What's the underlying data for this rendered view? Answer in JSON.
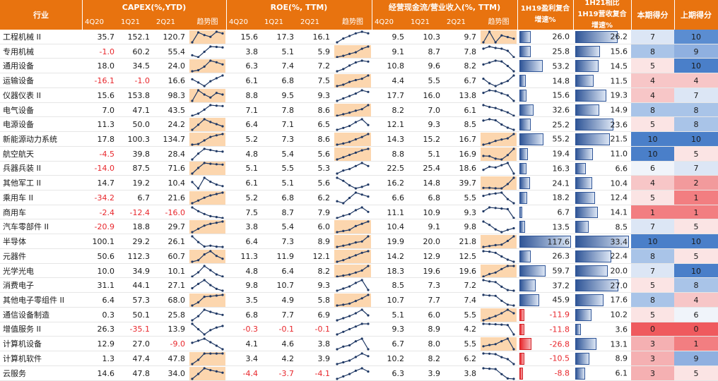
{
  "headers": {
    "industry": "行业",
    "capex": "CAPEX(%,YTD)",
    "roe": "ROE(%, TTM)",
    "cfo": "经营现金流/营业收入(%, TTM)",
    "profit_cagr": "1H19盈利复合增速%",
    "rev_cagr": "1H21相比1H19营收复合增速%",
    "score_now": "本期得分",
    "score_prev": "上期得分",
    "periods": [
      "4Q20",
      "1Q21",
      "2Q21"
    ],
    "trend": "趋势图"
  },
  "colors": {
    "header_bg": "#e8730f",
    "trend_bg": "#fcd6ae",
    "line": "#1f3864",
    "negative_text": "#e8272c",
    "bar_pos": "#2f5597",
    "bar_neg": "#e8272c"
  },
  "rows": [
    {
      "name": "工程机械 II",
      "capex": [
        "35.7",
        "152.1",
        "120.7"
      ],
      "capex_trend": [
        35.7,
        152.1,
        120.7,
        100,
        160,
        140
      ],
      "capex_hl": true,
      "roe": [
        "15.6",
        "17.3",
        "16.1"
      ],
      "roe_trend": [
        9,
        12,
        14,
        16,
        17.3,
        16.1
      ],
      "roe_hl": false,
      "cfo": [
        "9.5",
        "10.3",
        "9.7"
      ],
      "cfo_trend": [
        9,
        11,
        9,
        10.3,
        10,
        9.7
      ],
      "cfo_hl": true,
      "profit": "26.0",
      "rev": "26.2",
      "score_now": "7",
      "score_prev": "10",
      "score_now_color": "#dce6f5",
      "score_prev_color": "#5b8dd1"
    },
    {
      "name": "专用机械",
      "capex": [
        "-1.0",
        "60.2",
        "55.4"
      ],
      "capex_trend": [
        10,
        -1,
        30,
        60.2,
        58,
        55.4
      ],
      "capex_hl": false,
      "roe": [
        "3.8",
        "5.1",
        "5.9"
      ],
      "roe_trend": [
        2,
        2.5,
        3.2,
        3.8,
        5.1,
        5.9
      ],
      "roe_hl": true,
      "cfo": [
        "9.1",
        "8.7",
        "7.8"
      ],
      "cfo_trend": [
        9,
        9.3,
        9.1,
        9,
        8.7,
        7.8
      ],
      "cfo_hl": false,
      "profit": "25.8",
      "rev": "15.6",
      "score_now": "8",
      "score_prev": "9",
      "score_now_color": "#a9c4e8",
      "score_prev_color": "#8fb0e0"
    },
    {
      "name": "通用设备",
      "capex": [
        "18.0",
        "34.5",
        "24.0"
      ],
      "capex_trend": [
        5,
        8,
        18,
        34.5,
        30,
        24
      ],
      "capex_hl": true,
      "roe": [
        "6.3",
        "7.4",
        "7.2"
      ],
      "roe_trend": [
        5,
        5.5,
        6.3,
        7,
        7.4,
        7.2
      ],
      "roe_hl": false,
      "cfo": [
        "10.8",
        "9.6",
        "8.2"
      ],
      "cfo_trend": [
        10,
        10.5,
        11,
        10.8,
        9.6,
        8.2
      ],
      "cfo_hl": false,
      "profit": "53.2",
      "rev": "14.5",
      "score_now": "5",
      "score_prev": "10",
      "score_now_color": "#fbe4e4",
      "score_prev_color": "#4a7fc9"
    },
    {
      "name": "运输设备",
      "capex": [
        "-16.1",
        "-1.0",
        "16.6"
      ],
      "capex_trend": [
        5,
        -5,
        -16.1,
        -1,
        8,
        16.6
      ],
      "capex_hl": false,
      "roe": [
        "6.1",
        "6.8",
        "7.5"
      ],
      "roe_trend": [
        5.2,
        5.5,
        6.1,
        6.5,
        6.8,
        7.5
      ],
      "roe_hl": true,
      "cfo": [
        "4.4",
        "5.5",
        "6.7"
      ],
      "cfo_trend": [
        6,
        5,
        4.4,
        5,
        5.5,
        6.7
      ],
      "cfo_hl": false,
      "profit": "14.8",
      "rev": "11.5",
      "score_now": "4",
      "score_prev": "4",
      "score_now_color": "#f7c6c7",
      "score_prev_color": "#f7c6c7"
    },
    {
      "name": "仪器仪表 II",
      "capex": [
        "15.6",
        "153.8",
        "98.3"
      ],
      "capex_trend": [
        15.6,
        153.8,
        98.3,
        60,
        120,
        98.3
      ],
      "capex_hl": true,
      "roe": [
        "8.8",
        "9.5",
        "9.3"
      ],
      "roe_trend": [
        8.2,
        8.5,
        8.8,
        9.1,
        9.5,
        9.3
      ],
      "roe_hl": false,
      "cfo": [
        "17.7",
        "16.0",
        "13.8"
      ],
      "cfo_trend": [
        17,
        18,
        17.7,
        16.8,
        16,
        13.8
      ],
      "cfo_hl": false,
      "profit": "15.6",
      "rev": "19.3",
      "score_now": "4",
      "score_prev": "7",
      "score_now_color": "#f7c6c7",
      "score_prev_color": "#dce6f5"
    },
    {
      "name": "电气设备",
      "capex": [
        "7.0",
        "47.1",
        "43.5"
      ],
      "capex_trend": [
        7,
        15,
        30,
        47.1,
        45,
        43.5
      ],
      "capex_hl": false,
      "roe": [
        "7.1",
        "7.8",
        "8.6"
      ],
      "roe_trend": [
        6.5,
        6.8,
        7.1,
        7.5,
        7.8,
        8.6
      ],
      "roe_hl": true,
      "cfo": [
        "8.2",
        "7.0",
        "6.1"
      ],
      "cfo_trend": [
        9,
        8.5,
        8.2,
        7.6,
        7,
        6.1
      ],
      "cfo_hl": false,
      "profit": "32.6",
      "rev": "14.9",
      "score_now": "8",
      "score_prev": "8",
      "score_now_color": "#a9c4e8",
      "score_prev_color": "#a9c4e8"
    },
    {
      "name": "电源设备",
      "capex": [
        "11.3",
        "50.0",
        "24.2"
      ],
      "capex_trend": [
        11.3,
        30,
        50,
        40,
        32,
        24.2
      ],
      "capex_hl": true,
      "roe": [
        "6.4",
        "7.1",
        "6.5"
      ],
      "roe_trend": [
        6,
        6.2,
        6.4,
        6.8,
        7.1,
        6.5
      ],
      "roe_hl": false,
      "cfo": [
        "12.1",
        "9.3",
        "8.5"
      ],
      "cfo_trend": [
        12,
        12.5,
        12.1,
        10.5,
        9.3,
        8.5
      ],
      "cfo_hl": false,
      "profit": "25.2",
      "rev": "23.6",
      "score_now": "5",
      "score_prev": "8",
      "score_now_color": "#fbe4e4",
      "score_prev_color": "#a9c4e8"
    },
    {
      "name": "新能源动力系统",
      "capex": [
        "17.8",
        "100.3",
        "134.7"
      ],
      "capex_trend": [
        10,
        17.8,
        60,
        100.3,
        120,
        134.7
      ],
      "capex_hl": true,
      "roe": [
        "5.2",
        "7.3",
        "8.6"
      ],
      "roe_trend": [
        4,
        4.5,
        5.2,
        6.3,
        7.3,
        8.6
      ],
      "roe_hl": true,
      "cfo": [
        "14.3",
        "15.2",
        "16.7"
      ],
      "cfo_trend": [
        13,
        13.5,
        14.3,
        14.8,
        15.2,
        16.7
      ],
      "cfo_hl": true,
      "profit": "55.2",
      "rev": "21.5",
      "score_now": "10",
      "score_prev": "10",
      "score_now_color": "#4a7fc9",
      "score_prev_color": "#4a7fc9"
    },
    {
      "name": "航空航天",
      "capex": [
        "-4.5",
        "39.8",
        "28.4"
      ],
      "capex_trend": [
        -4.5,
        20,
        39.8,
        35,
        30,
        28.4
      ],
      "capex_hl": false,
      "roe": [
        "4.8",
        "5.4",
        "5.6"
      ],
      "roe_trend": [
        4.2,
        4.5,
        4.8,
        5.1,
        5.4,
        5.6
      ],
      "roe_hl": true,
      "cfo": [
        "8.8",
        "5.1",
        "16.9"
      ],
      "cfo_trend": [
        9,
        8.8,
        6,
        5.1,
        10,
        16.9
      ],
      "cfo_hl": true,
      "profit": "19.4",
      "rev": "11.0",
      "score_now": "10",
      "score_prev": "5",
      "score_now_color": "#4a7fc9",
      "score_prev_color": "#fbe4e4"
    },
    {
      "name": "兵器兵装 II",
      "capex": [
        "-14.0",
        "87.5",
        "71.6"
      ],
      "capex_trend": [
        -14,
        40,
        87.5,
        80,
        75,
        71.6
      ],
      "capex_hl": true,
      "roe": [
        "5.1",
        "5.5",
        "5.3"
      ],
      "roe_trend": [
        4.8,
        5,
        5.1,
        5.3,
        5.5,
        5.3
      ],
      "roe_hl": false,
      "cfo": [
        "22.5",
        "25.4",
        "18.6"
      ],
      "cfo_trend": [
        21,
        23,
        22.5,
        24,
        25.4,
        18.6
      ],
      "cfo_hl": false,
      "profit": "16.3",
      "rev": "6.6",
      "score_now": "6",
      "score_prev": "7",
      "score_now_color": "#f0f4fa",
      "score_prev_color": "#dce6f5"
    },
    {
      "name": "其他军工 II",
      "capex": [
        "14.7",
        "19.2",
        "10.4"
      ],
      "capex_trend": [
        14.7,
        8,
        19.2,
        15,
        12,
        10.4
      ],
      "capex_hl": false,
      "roe": [
        "6.1",
        "5.1",
        "5.6"
      ],
      "roe_trend": [
        6.5,
        6.1,
        5.5,
        5.1,
        5.3,
        5.6
      ],
      "roe_hl": false,
      "cfo": [
        "16.2",
        "14.8",
        "39.7"
      ],
      "cfo_trend": [
        16,
        16.2,
        15,
        14.8,
        25,
        39.7
      ],
      "cfo_hl": true,
      "profit": "24.1",
      "rev": "10.4",
      "score_now": "4",
      "score_prev": "2",
      "score_now_color": "#f7c6c7",
      "score_prev_color": "#f29a9c"
    },
    {
      "name": "乘用车 II",
      "capex": [
        "-34.2",
        "6.7",
        "21.6"
      ],
      "capex_trend": [
        -34.2,
        -20,
        -5,
        6.7,
        14,
        21.6
      ],
      "capex_hl": true,
      "roe": [
        "5.2",
        "6.8",
        "6.2"
      ],
      "roe_trend": [
        5.5,
        5.2,
        6,
        6.8,
        6.5,
        6.2
      ],
      "roe_hl": false,
      "cfo": [
        "6.6",
        "6.8",
        "5.5"
      ],
      "cfo_trend": [
        6.4,
        6.6,
        6.7,
        6.8,
        6,
        5.5
      ],
      "cfo_hl": false,
      "profit": "18.2",
      "rev": "12.4",
      "score_now": "5",
      "score_prev": "1",
      "score_now_color": "#fbe4e4",
      "score_prev_color": "#f27e81"
    },
    {
      "name": "商用车",
      "capex": [
        "-2.4",
        "-12.4",
        "-16.0"
      ],
      "capex_trend": [
        5,
        -2.4,
        -8,
        -12.4,
        -14,
        -16
      ],
      "capex_hl": false,
      "roe": [
        "7.5",
        "8.7",
        "7.9"
      ],
      "roe_trend": [
        6.8,
        7.2,
        7.5,
        8.2,
        8.7,
        7.9
      ],
      "roe_hl": false,
      "cfo": [
        "11.1",
        "10.9",
        "9.3"
      ],
      "cfo_trend": [
        10.5,
        11.2,
        11.1,
        11,
        10.9,
        9.3
      ],
      "cfo_hl": false,
      "profit": "6.7",
      "rev": "14.1",
      "score_now": "1",
      "score_prev": "1",
      "score_now_color": "#f27e81",
      "score_prev_color": "#f27e81"
    },
    {
      "name": "汽车零部件 II",
      "capex": [
        "-20.9",
        "18.8",
        "29.7"
      ],
      "capex_trend": [
        -20.9,
        -5,
        10,
        18.8,
        24,
        29.7
      ],
      "capex_hl": true,
      "roe": [
        "3.8",
        "5.4",
        "6.0"
      ],
      "roe_trend": [
        3.2,
        3.5,
        3.8,
        4.8,
        5.4,
        6
      ],
      "roe_hl": true,
      "cfo": [
        "10.4",
        "9.1",
        "9.8"
      ],
      "cfo_trend": [
        11,
        10.4,
        9.6,
        9.1,
        9.5,
        9.8
      ],
      "cfo_hl": false,
      "profit": "13.5",
      "rev": "8.5",
      "score_now": "7",
      "score_prev": "5",
      "score_now_color": "#dce6f5",
      "score_prev_color": "#fbe4e4"
    },
    {
      "name": "半导体",
      "capex": [
        "100.1",
        "29.2",
        "26.1"
      ],
      "capex_trend": [
        100.1,
        60,
        29.2,
        35,
        28,
        26.1
      ],
      "capex_hl": false,
      "roe": [
        "6.4",
        "7.3",
        "8.9"
      ],
      "roe_trend": [
        5.6,
        6,
        6.4,
        7,
        7.3,
        8.9
      ],
      "roe_hl": true,
      "cfo": [
        "19.9",
        "20.0",
        "21.8"
      ],
      "cfo_trend": [
        19.5,
        19.7,
        19.9,
        20,
        20.8,
        21.8
      ],
      "cfo_hl": true,
      "profit": "117.6",
      "rev": "33.4",
      "score_now": "10",
      "score_prev": "10",
      "score_now_color": "#4a7fc9",
      "score_prev_color": "#4a7fc9"
    },
    {
      "name": "元器件",
      "capex": [
        "50.6",
        "112.3",
        "60.7"
      ],
      "capex_trend": [
        40,
        50.6,
        90,
        112.3,
        80,
        60.7
      ],
      "capex_hl": true,
      "roe": [
        "11.3",
        "11.9",
        "12.1"
      ],
      "roe_trend": [
        10.8,
        11,
        11.3,
        11.6,
        11.9,
        12.1
      ],
      "roe_hl": true,
      "cfo": [
        "14.2",
        "12.9",
        "12.5"
      ],
      "cfo_trend": [
        14.5,
        14.4,
        14.2,
        13.5,
        12.9,
        12.5
      ],
      "cfo_hl": false,
      "profit": "26.3",
      "rev": "22.4",
      "score_now": "8",
      "score_prev": "5",
      "score_now_color": "#a9c4e8",
      "score_prev_color": "#fbe4e4"
    },
    {
      "name": "光学光电",
      "capex": [
        "10.0",
        "34.9",
        "10.1"
      ],
      "capex_trend": [
        10,
        20,
        34.9,
        25,
        15,
        10.1
      ],
      "capex_hl": false,
      "roe": [
        "4.8",
        "6.4",
        "8.2"
      ],
      "roe_trend": [
        4,
        4.4,
        4.8,
        5.6,
        6.4,
        8.2
      ],
      "roe_hl": true,
      "cfo": [
        "18.3",
        "19.6",
        "19.6"
      ],
      "cfo_trend": [
        17.5,
        18,
        18.3,
        19,
        19.6,
        19.6
      ],
      "cfo_hl": true,
      "profit": "59.7",
      "rev": "20.0",
      "score_now": "7",
      "score_prev": "10",
      "score_now_color": "#dce6f5",
      "score_prev_color": "#4a7fc9"
    },
    {
      "name": "消费电子",
      "capex": [
        "31.1",
        "44.1",
        "27.1"
      ],
      "capex_trend": [
        31.1,
        38,
        44.1,
        36,
        30,
        27.1
      ],
      "capex_hl": false,
      "roe": [
        "9.8",
        "10.7",
        "9.3"
      ],
      "roe_trend": [
        9.2,
        9.5,
        9.8,
        10.3,
        10.7,
        9.3
      ],
      "roe_hl": false,
      "cfo": [
        "8.5",
        "7.3",
        "7.2"
      ],
      "cfo_trend": [
        8.8,
        8.6,
        8.5,
        7.8,
        7.3,
        7.2
      ],
      "cfo_hl": false,
      "profit": "37.2",
      "rev": "27.0",
      "score_now": "5",
      "score_prev": "8",
      "score_now_color": "#fbe4e4",
      "score_prev_color": "#a9c4e8"
    },
    {
      "name": "其他电子零组件 II",
      "capex": [
        "6.4",
        "57.3",
        "68.0"
      ],
      "capex_trend": [
        6.4,
        25,
        57.3,
        60,
        64,
        68
      ],
      "capex_hl": true,
      "roe": [
        "3.5",
        "4.9",
        "5.8"
      ],
      "roe_trend": [
        3,
        3.2,
        3.5,
        4.2,
        4.9,
        5.8
      ],
      "roe_hl": true,
      "cfo": [
        "10.7",
        "7.7",
        "7.4"
      ],
      "cfo_trend": [
        11,
        10.8,
        10.7,
        9,
        7.7,
        7.4
      ],
      "cfo_hl": false,
      "profit": "45.9",
      "rev": "17.6",
      "score_now": "8",
      "score_prev": "4",
      "score_now_color": "#a9c4e8",
      "score_prev_color": "#f7c6c7"
    },
    {
      "name": "通信设备制造",
      "capex": [
        "0.3",
        "50.1",
        "25.8"
      ],
      "capex_trend": [
        0.3,
        20,
        50.1,
        40,
        32,
        25.8
      ],
      "capex_hl": false,
      "roe": [
        "6.8",
        "7.7",
        "6.9"
      ],
      "roe_trend": [
        6.2,
        6.5,
        6.8,
        7.2,
        7.7,
        6.9
      ],
      "roe_hl": false,
      "cfo": [
        "5.1",
        "6.0",
        "5.5"
      ],
      "cfo_trend": [
        4.5,
        4.8,
        5.1,
        5.5,
        6,
        5.5
      ],
      "cfo_hl": true,
      "profit": "-11.9",
      "rev": "10.2",
      "score_now": "5",
      "score_prev": "6",
      "score_now_color": "#fbe4e4",
      "score_prev_color": "#f0f4fa"
    },
    {
      "name": "增值服务 II",
      "capex": [
        "26.3",
        "-35.1",
        "13.9"
      ],
      "capex_trend": [
        26.3,
        -5,
        -35.1,
        -10,
        5,
        13.9
      ],
      "capex_hl": false,
      "roe": [
        "-0.3",
        "-0.1",
        "-0.1"
      ],
      "roe_trend": [
        -0.5,
        -0.4,
        -0.3,
        -0.2,
        -0.1,
        -0.1
      ],
      "roe_hl": false,
      "cfo": [
        "9.3",
        "8.9",
        "4.2"
      ],
      "cfo_trend": [
        9.5,
        9.4,
        9.3,
        9.1,
        8.9,
        4.2
      ],
      "cfo_hl": false,
      "profit": "-11.8",
      "rev": "3.6",
      "score_now": "0",
      "score_prev": "0",
      "score_now_color": "#ef5a5e",
      "score_prev_color": "#ef5a5e"
    },
    {
      "name": "计算机设备",
      "capex": [
        "12.9",
        "27.0",
        "-9.0"
      ],
      "capex_trend": [
        12.9,
        20,
        27,
        15,
        3,
        -9
      ],
      "capex_hl": false,
      "roe": [
        "4.1",
        "4.6",
        "3.8"
      ],
      "roe_trend": [
        3.8,
        4,
        4.1,
        4.4,
        4.6,
        3.8
      ],
      "roe_hl": false,
      "cfo": [
        "6.7",
        "8.0",
        "5.5"
      ],
      "cfo_trend": [
        6.2,
        6.5,
        6.7,
        7.4,
        8,
        5.5
      ],
      "cfo_hl": true,
      "profit": "-26.8",
      "rev": "13.1",
      "score_now": "3",
      "score_prev": "1",
      "score_now_color": "#f5b0b2",
      "score_prev_color": "#f27e81"
    },
    {
      "name": "计算机软件",
      "capex": [
        "1.3",
        "47.4",
        "47.8"
      ],
      "capex_trend": [
        1.3,
        20,
        47.4,
        47.5,
        47.6,
        47.8
      ],
      "capex_hl": true,
      "roe": [
        "3.4",
        "4.2",
        "3.9"
      ],
      "roe_trend": [
        3,
        3.2,
        3.4,
        3.8,
        4.2,
        3.9
      ],
      "roe_hl": false,
      "cfo": [
        "10.2",
        "8.2",
        "6.2"
      ],
      "cfo_trend": [
        10.5,
        10.4,
        10.2,
        9,
        8.2,
        6.2
      ],
      "cfo_hl": false,
      "profit": "-10.5",
      "rev": "8.9",
      "score_now": "3",
      "score_prev": "9",
      "score_now_color": "#f5b0b2",
      "score_prev_color": "#8fb0e0"
    },
    {
      "name": "云服务",
      "capex": [
        "14.6",
        "47.8",
        "34.0"
      ],
      "capex_trend": [
        14.6,
        30,
        47.8,
        42,
        38,
        34
      ],
      "capex_hl": true,
      "roe": [
        "-4.4",
        "-3.7",
        "-4.1"
      ],
      "roe_trend": [
        -5,
        -4.7,
        -4.4,
        -4,
        -3.7,
        -4.1
      ],
      "roe_hl": false,
      "cfo": [
        "6.3",
        "3.9",
        "3.8"
      ],
      "cfo_trend": [
        6.5,
        6.4,
        6.3,
        5,
        3.9,
        3.8
      ],
      "cfo_hl": false,
      "profit": "-8.8",
      "rev": "6.1",
      "score_now": "3",
      "score_prev": "5",
      "score_now_color": "#f5b0b2",
      "score_prev_color": "#fbe4e4"
    }
  ]
}
